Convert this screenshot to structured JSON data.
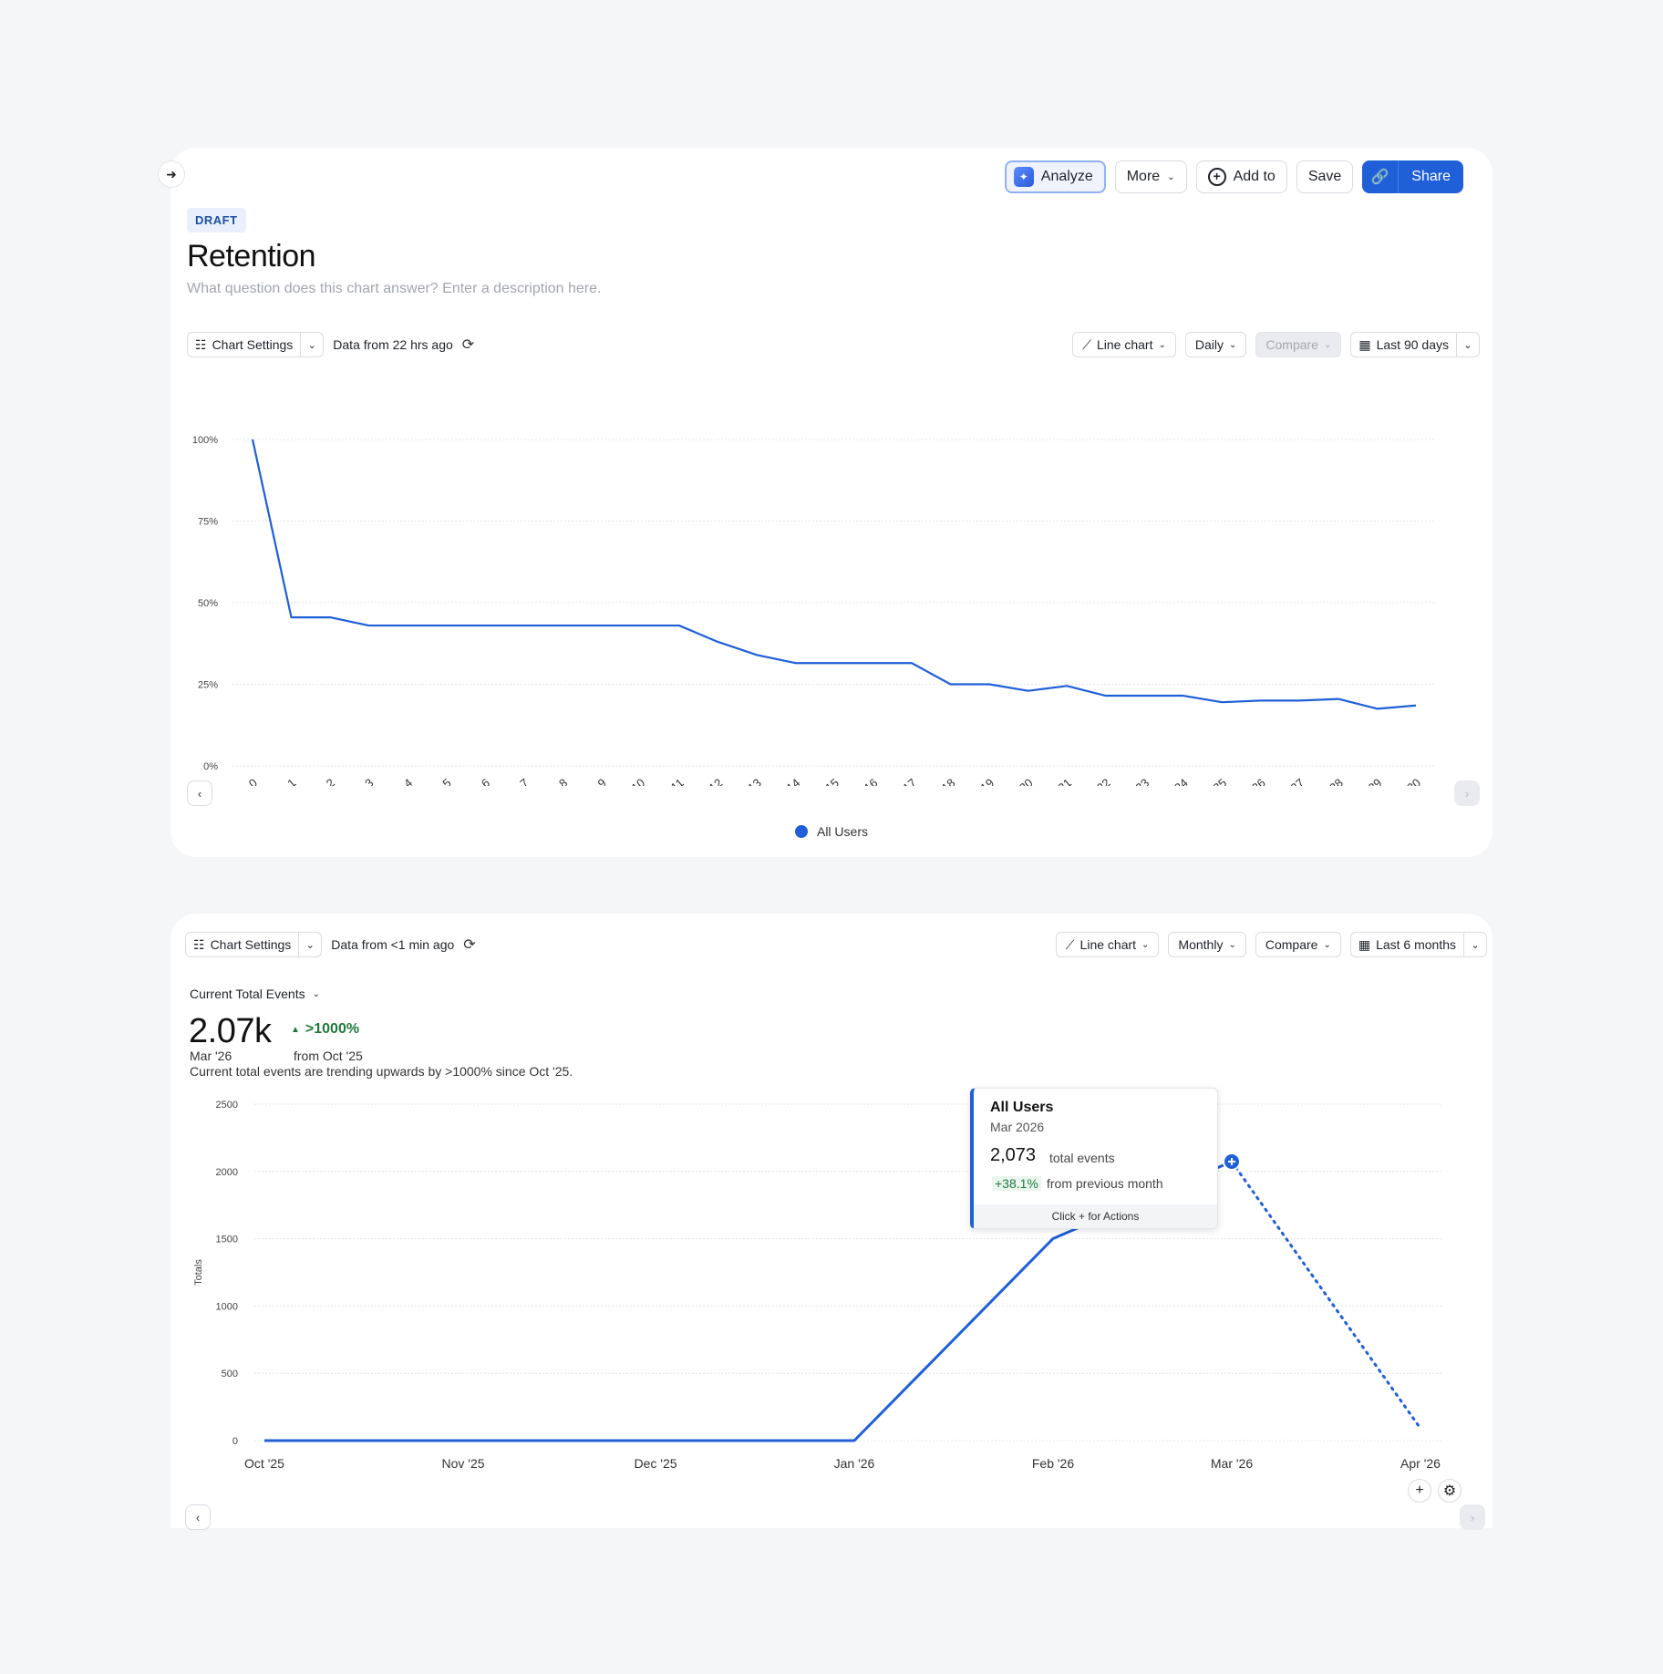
{
  "retention_card": {
    "collapse_icon": "arrow-right-icon",
    "toolbar": {
      "analyze_label": "Analyze",
      "more_label": "More",
      "add_to_label": "Add to",
      "save_label": "Save",
      "share_label": "Share"
    },
    "badge": "DRAFT",
    "title": "Retention",
    "description_placeholder": "What question does this chart answer? Enter a description here.",
    "controls": {
      "chart_settings_label": "Chart Settings",
      "data_freshness": "Data from 22 hrs ago",
      "chart_type_label": "Line chart",
      "interval_label": "Daily",
      "compare_label": "Compare",
      "date_range_label": "Last 90 days"
    },
    "legend_label": "All Users"
  },
  "events_card": {
    "controls": {
      "chart_settings_label": "Chart Settings",
      "data_freshness": "Data from <1 min ago",
      "chart_type_label": "Line chart",
      "interval_label": "Monthly",
      "compare_label": "Compare",
      "date_range_label": "Last 6 months"
    },
    "metric_label": "Current Total Events",
    "big_value": "2.07k",
    "big_value_date": "Mar '26",
    "delta": ">1000%",
    "delta_from": "from Oct '25",
    "trend_text": "Current total events are trending upwards by >1000% since Oct '25.",
    "tooltip": {
      "series": "All Users",
      "date": "Mar 2026",
      "value": "2,073",
      "unit": "total events",
      "delta": "+38.1%",
      "delta_label": "from previous month",
      "footer": "Click + for Actions"
    }
  },
  "chart_data": [
    {
      "type": "line",
      "title": "Retention",
      "categories": [
        "Day 0",
        "Day 1",
        "Day 2",
        "Day 3",
        "Day 4",
        "Day 5",
        "Day 6",
        "Day 7",
        "Day 8",
        "Day 9",
        "Day 10",
        "Day 11",
        "Day 12",
        "Day 13",
        "Day 14",
        "Day 15",
        "Day 16",
        "Day 17",
        "Day 18",
        "Day 19",
        "Day 20",
        "Day 21",
        "Day 22",
        "Day 23",
        "Day 24",
        "Day 25",
        "Day 26",
        "Day 27",
        "Day 28",
        "Day 29",
        "Day 30"
      ],
      "yticks": [
        "0%",
        "25%",
        "50%",
        "75%",
        "100%"
      ],
      "ylim": [
        0,
        100
      ],
      "grid": true,
      "legend": "bottom-center",
      "series": [
        {
          "name": "All Users",
          "color": "#1f5fd8",
          "values": [
            100,
            45.5,
            45.5,
            43,
            43,
            43,
            43,
            43,
            43,
            43,
            43,
            43,
            38,
            34,
            31.5,
            31.5,
            31.5,
            31.5,
            25,
            25,
            23,
            24.5,
            21.5,
            21.5,
            21.5,
            19.5,
            20,
            20,
            20.5,
            17.5,
            18.5
          ]
        }
      ]
    },
    {
      "type": "line",
      "categories": [
        "Oct '25",
        "Nov '25",
        "Dec '25",
        "Jan '26",
        "Feb '26",
        "Mar '26",
        "Apr '26"
      ],
      "ylabel": "Totals",
      "yticks": [
        "0",
        "500",
        "1000",
        "1500",
        "2000",
        "2500"
      ],
      "ylim": [
        0,
        2500
      ],
      "grid": true,
      "series": [
        {
          "name": "All Users",
          "color": "#1f5fd8",
          "values": [
            0,
            0,
            0,
            0,
            1501,
            2073,
            90
          ],
          "incomplete_from": "Mar '26"
        }
      ],
      "highlight": {
        "category": "Mar '26",
        "value": 2073
      }
    }
  ]
}
